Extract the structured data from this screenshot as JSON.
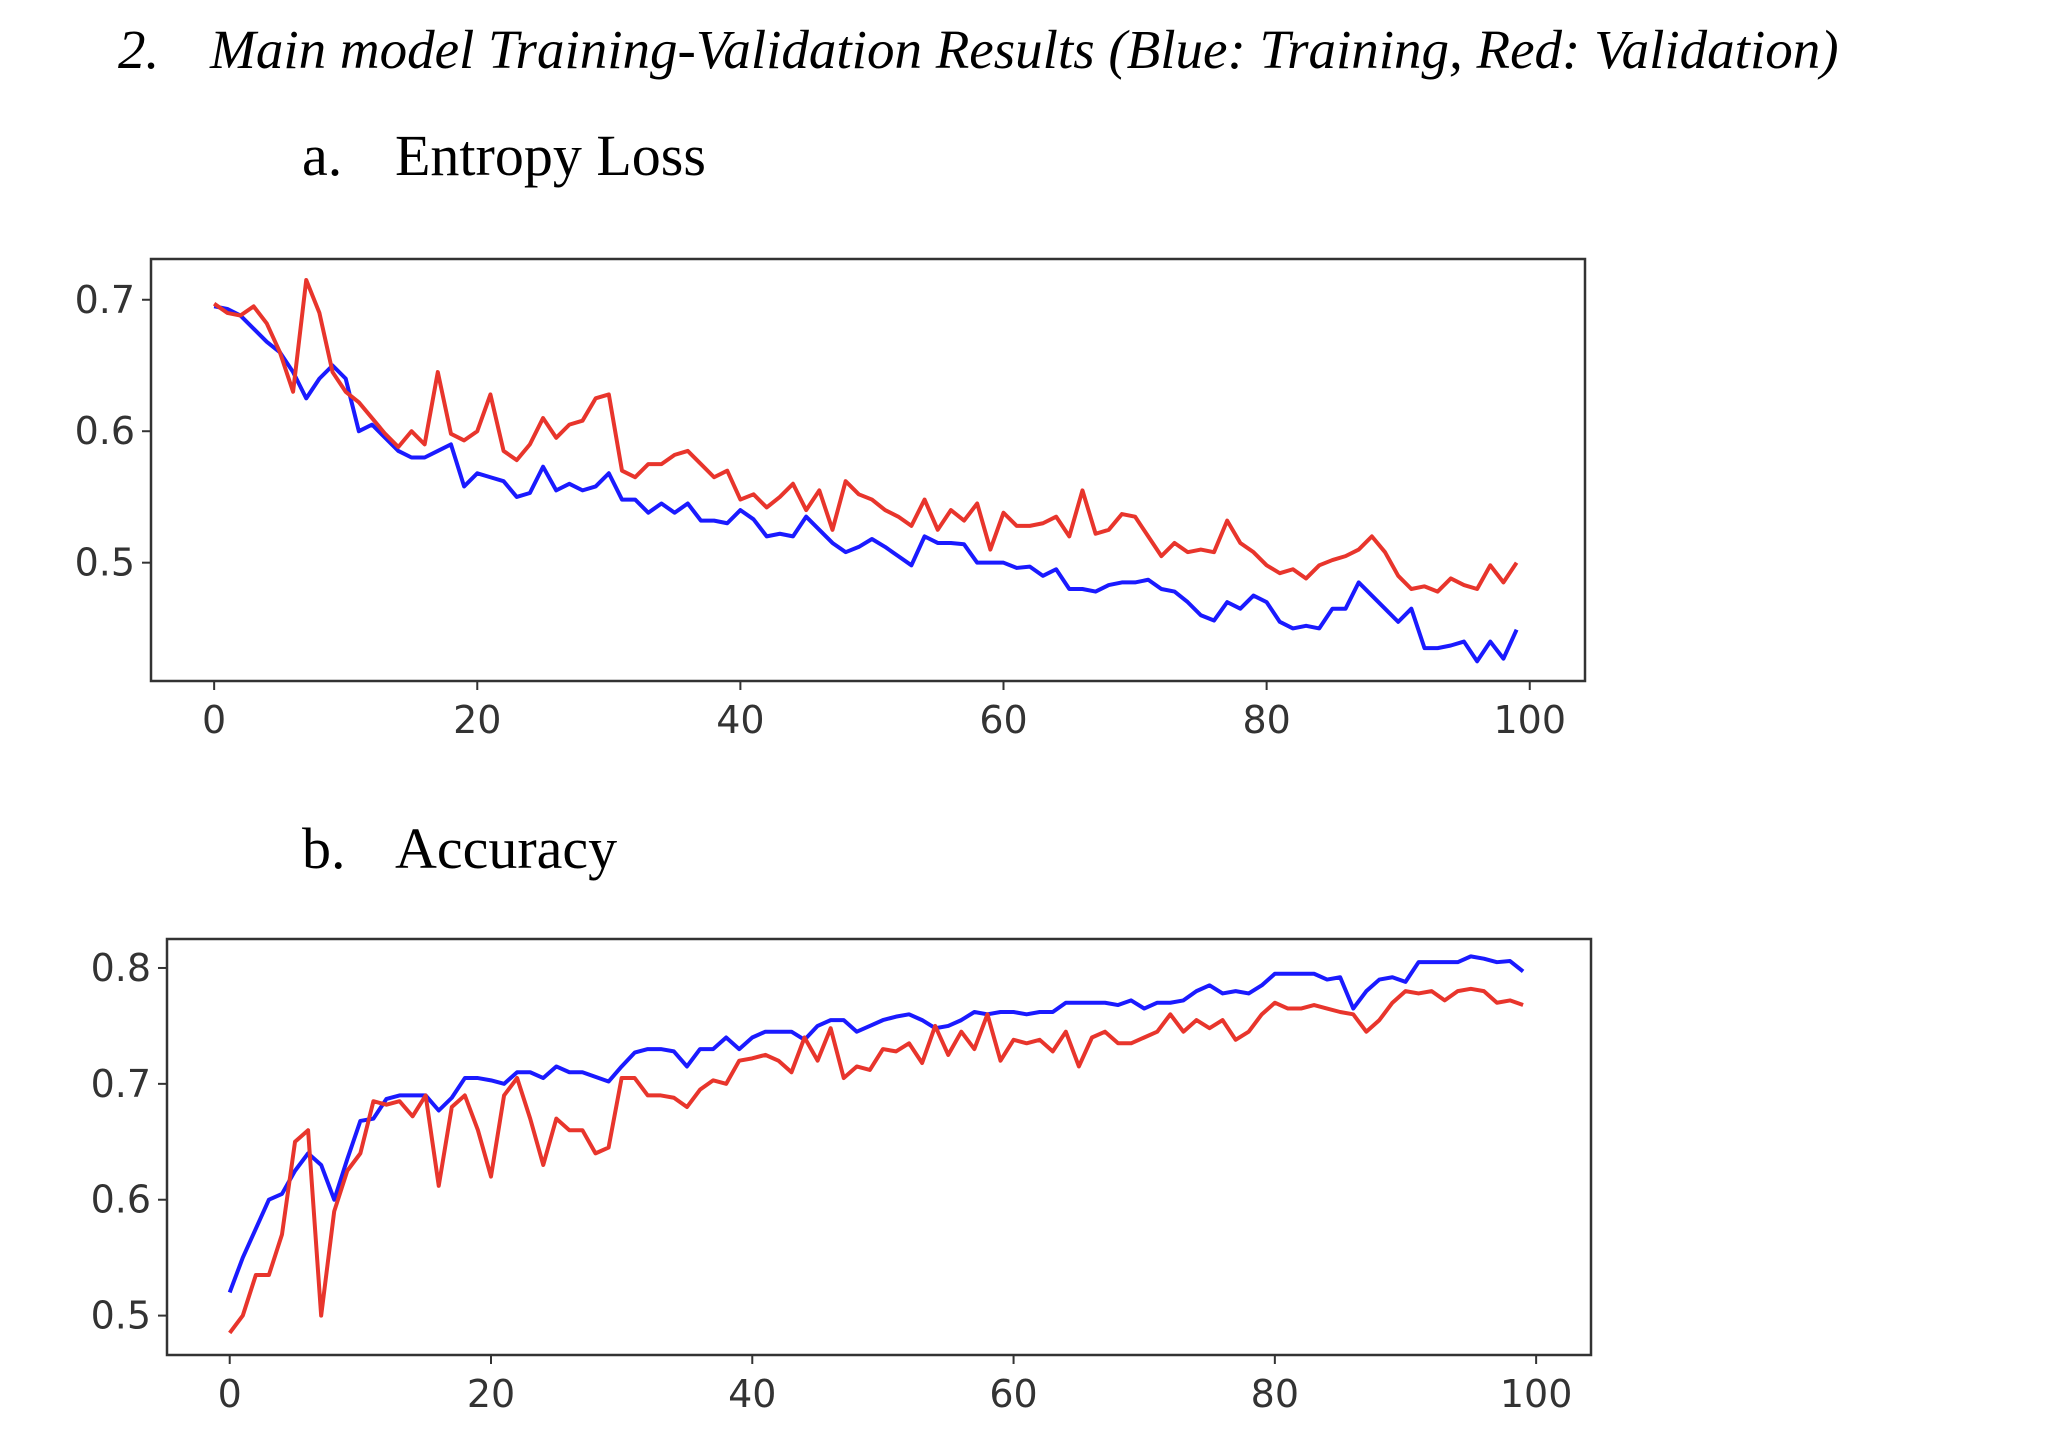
{
  "heading": {
    "number": "2.",
    "text": "Main model Training-Validation Results (Blue: Training, Red: Validation)"
  },
  "chart_data": [
    {
      "type": "line",
      "label": "a.",
      "title": "Entropy Loss",
      "x": [
        0,
        1,
        2,
        3,
        4,
        5,
        6,
        7,
        8,
        9,
        10,
        11,
        12,
        13,
        14,
        15,
        16,
        17,
        18,
        19,
        20,
        21,
        22,
        23,
        24,
        25,
        26,
        27,
        28,
        29,
        30,
        31,
        32,
        33,
        34,
        35,
        36,
        37,
        38,
        39,
        40,
        41,
        42,
        43,
        44,
        45,
        46,
        47,
        48,
        49,
        50,
        51,
        52,
        53,
        54,
        55,
        56,
        57,
        58,
        59,
        60,
        61,
        62,
        63,
        64,
        65,
        66,
        67,
        68,
        69,
        70,
        71,
        72,
        73,
        74,
        75,
        76,
        77,
        78,
        79,
        80,
        81,
        82,
        83,
        84,
        85,
        86,
        87,
        88,
        89,
        90,
        91,
        92,
        93,
        94,
        95,
        96,
        97,
        98,
        99
      ],
      "series": [
        {
          "color": "#1a1aff",
          "values": [
            0.695,
            0.693,
            0.688,
            0.678,
            0.668,
            0.66,
            0.645,
            0.625,
            0.64,
            0.65,
            0.64,
            0.6,
            0.605,
            0.595,
            0.585,
            0.58,
            0.58,
            0.585,
            0.59,
            0.558,
            0.568,
            0.565,
            0.562,
            0.55,
            0.553,
            0.573,
            0.555,
            0.56,
            0.555,
            0.558,
            0.568,
            0.548,
            0.548,
            0.538,
            0.545,
            0.538,
            0.545,
            0.532,
            0.532,
            0.53,
            0.54,
            0.533,
            0.52,
            0.522,
            0.52,
            0.535,
            0.525,
            0.515,
            0.508,
            0.512,
            0.518,
            0.512,
            0.505,
            0.498,
            0.52,
            0.515,
            0.515,
            0.514,
            0.5,
            0.5,
            0.5,
            0.496,
            0.497,
            0.49,
            0.495,
            0.48,
            0.48,
            0.478,
            0.483,
            0.485,
            0.485,
            0.487,
            0.48,
            0.478,
            0.47,
            0.46,
            0.456,
            0.47,
            0.465,
            0.475,
            0.47,
            0.455,
            0.45,
            0.452,
            0.45,
            0.465,
            0.465,
            0.485,
            0.475,
            0.465,
            0.455,
            0.465,
            0.435,
            0.435,
            0.437,
            0.44,
            0.425,
            0.44,
            0.427,
            0.449
          ]
        },
        {
          "color": "#e8352c",
          "values": [
            0.697,
            0.69,
            0.688,
            0.695,
            0.682,
            0.66,
            0.63,
            0.715,
            0.69,
            0.645,
            0.63,
            0.622,
            0.61,
            0.598,
            0.588,
            0.6,
            0.59,
            0.645,
            0.598,
            0.593,
            0.6,
            0.628,
            0.585,
            0.578,
            0.59,
            0.61,
            0.595,
            0.605,
            0.608,
            0.625,
            0.628,
            0.57,
            0.565,
            0.575,
            0.575,
            0.582,
            0.585,
            0.575,
            0.565,
            0.57,
            0.548,
            0.552,
            0.542,
            0.55,
            0.56,
            0.54,
            0.555,
            0.525,
            0.562,
            0.552,
            0.548,
            0.54,
            0.535,
            0.528,
            0.548,
            0.525,
            0.54,
            0.532,
            0.545,
            0.51,
            0.538,
            0.528,
            0.528,
            0.53,
            0.535,
            0.52,
            0.555,
            0.522,
            0.525,
            0.537,
            0.535,
            0.52,
            0.505,
            0.515,
            0.508,
            0.51,
            0.508,
            0.532,
            0.515,
            0.508,
            0.498,
            0.492,
            0.495,
            0.488,
            0.498,
            0.502,
            0.505,
            0.51,
            0.52,
            0.508,
            0.49,
            0.48,
            0.482,
            0.478,
            0.488,
            0.483,
            0.48,
            0.498,
            0.485,
            0.5
          ]
        }
      ],
      "xlim": [
        -4.8,
        104.2
      ],
      "ylim": [
        0.41,
        0.731
      ],
      "xticks": [
        0,
        20,
        40,
        60,
        80,
        100
      ],
      "yticks": [
        0.5,
        0.6,
        0.7
      ]
    },
    {
      "type": "line",
      "label": "b.",
      "title": "Accuracy",
      "x": [
        0,
        1,
        2,
        3,
        4,
        5,
        6,
        7,
        8,
        9,
        10,
        11,
        12,
        13,
        14,
        15,
        16,
        17,
        18,
        19,
        20,
        21,
        22,
        23,
        24,
        25,
        26,
        27,
        28,
        29,
        30,
        31,
        32,
        33,
        34,
        35,
        36,
        37,
        38,
        39,
        40,
        41,
        42,
        43,
        44,
        45,
        46,
        47,
        48,
        49,
        50,
        51,
        52,
        53,
        54,
        55,
        56,
        57,
        58,
        59,
        60,
        61,
        62,
        63,
        64,
        65,
        66,
        67,
        68,
        69,
        70,
        71,
        72,
        73,
        74,
        75,
        76,
        77,
        78,
        79,
        80,
        81,
        82,
        83,
        84,
        85,
        86,
        87,
        88,
        89,
        90,
        91,
        92,
        93,
        94,
        95,
        96,
        97,
        98,
        99
      ],
      "series": [
        {
          "color": "#1a1aff",
          "values": [
            0.52,
            0.55,
            0.575,
            0.6,
            0.605,
            0.625,
            0.64,
            0.63,
            0.6,
            0.635,
            0.668,
            0.67,
            0.687,
            0.69,
            0.69,
            0.69,
            0.677,
            0.688,
            0.705,
            0.705,
            0.703,
            0.7,
            0.71,
            0.71,
            0.705,
            0.715,
            0.71,
            0.71,
            0.706,
            0.702,
            0.715,
            0.727,
            0.73,
            0.73,
            0.728,
            0.715,
            0.73,
            0.73,
            0.74,
            0.73,
            0.74,
            0.745,
            0.745,
            0.745,
            0.738,
            0.75,
            0.755,
            0.755,
            0.745,
            0.75,
            0.755,
            0.758,
            0.76,
            0.755,
            0.748,
            0.75,
            0.755,
            0.762,
            0.76,
            0.762,
            0.762,
            0.76,
            0.762,
            0.762,
            0.77,
            0.77,
            0.77,
            0.77,
            0.768,
            0.772,
            0.765,
            0.77,
            0.77,
            0.772,
            0.78,
            0.785,
            0.778,
            0.78,
            0.778,
            0.785,
            0.795,
            0.795,
            0.795,
            0.795,
            0.79,
            0.792,
            0.765,
            0.78,
            0.79,
            0.792,
            0.788,
            0.805,
            0.805,
            0.805,
            0.805,
            0.81,
            0.808,
            0.805,
            0.806,
            0.797
          ]
        },
        {
          "color": "#e8352c",
          "values": [
            0.485,
            0.5,
            0.535,
            0.535,
            0.57,
            0.65,
            0.66,
            0.5,
            0.59,
            0.625,
            0.64,
            0.685,
            0.682,
            0.685,
            0.672,
            0.69,
            0.612,
            0.68,
            0.69,
            0.66,
            0.62,
            0.69,
            0.705,
            0.67,
            0.63,
            0.67,
            0.66,
            0.66,
            0.64,
            0.645,
            0.705,
            0.705,
            0.69,
            0.69,
            0.688,
            0.68,
            0.695,
            0.703,
            0.7,
            0.72,
            0.722,
            0.725,
            0.72,
            0.71,
            0.74,
            0.72,
            0.748,
            0.705,
            0.715,
            0.712,
            0.73,
            0.728,
            0.735,
            0.718,
            0.75,
            0.725,
            0.745,
            0.73,
            0.76,
            0.72,
            0.738,
            0.735,
            0.738,
            0.728,
            0.745,
            0.715,
            0.74,
            0.745,
            0.735,
            0.735,
            0.74,
            0.745,
            0.76,
            0.745,
            0.755,
            0.748,
            0.755,
            0.738,
            0.745,
            0.76,
            0.77,
            0.765,
            0.765,
            0.768,
            0.765,
            0.762,
            0.76,
            0.745,
            0.755,
            0.77,
            0.78,
            0.778,
            0.78,
            0.772,
            0.78,
            0.782,
            0.78,
            0.77,
            0.772,
            0.768
          ]
        }
      ],
      "xlim": [
        -4.8,
        104.2
      ],
      "ylim": [
        0.466,
        0.825
      ],
      "xticks": [
        0,
        20,
        40,
        60,
        80,
        100
      ],
      "yticks": [
        0.5,
        0.6,
        0.7,
        0.8
      ]
    }
  ]
}
